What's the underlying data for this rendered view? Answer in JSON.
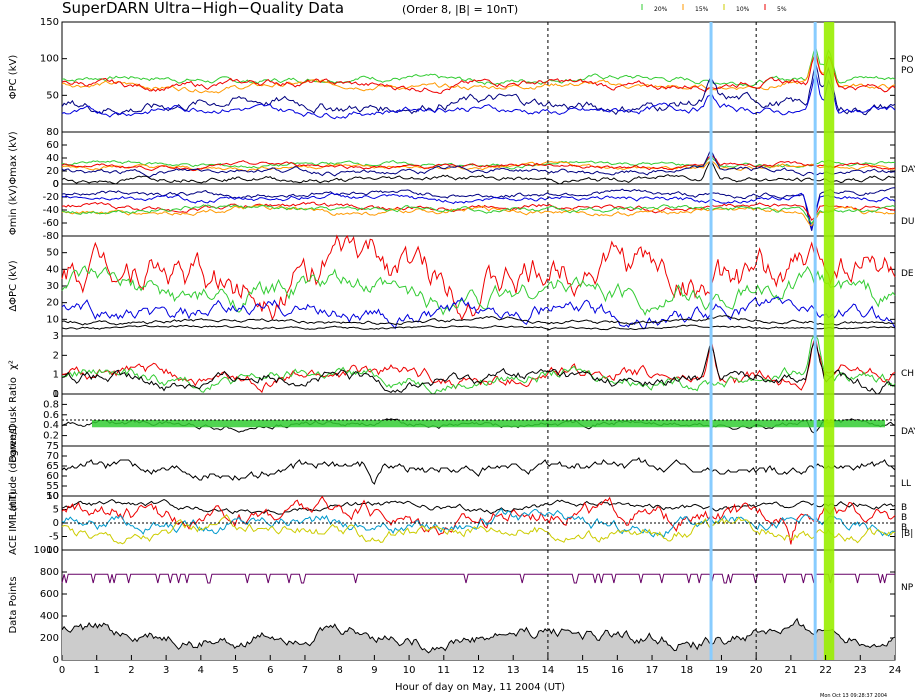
{
  "header": {
    "title": "SuperDARN Ultra−High−Quality Data",
    "subtitle": "(Order 8, |B| = 10nT)",
    "legend": [
      {
        "label": "20%",
        "color": "#33cc33"
      },
      {
        "label": "15%",
        "color": "#ff9900"
      },
      {
        "label": "10%",
        "color": "#cccc00"
      },
      {
        "label": "5%",
        "color": "#ee0000"
      }
    ],
    "stamp": "Mon Oct 13 09:28:37 2004"
  },
  "colors": {
    "red": "#ee0000",
    "green": "#33cc33",
    "orange": "#ff9900",
    "yellow": "#cccc00",
    "navy": "#000080",
    "blue": "#0000dd",
    "black": "#000000",
    "purple": "#660066",
    "skyblue": "#88ccff",
    "lime": "#99ee00",
    "grey": "#cccccc",
    "cyan": "#0099cc"
  },
  "chart_data": {
    "type": "line",
    "xlabel": "Hour of day on May, 11 2004 (UT)",
    "xlim": [
      0,
      24
    ],
    "x_ticks": [
      "0",
      "1",
      "2",
      "3",
      "4",
      "5",
      "6",
      "7",
      "8",
      "9",
      "10",
      "11",
      "12",
      "13",
      "14",
      "15",
      "16",
      "17",
      "18",
      "19",
      "20",
      "21",
      "22",
      "23",
      "24"
    ],
    "dashed_hours": [
      14,
      20
    ],
    "markers": [
      {
        "hour": 18.7,
        "color": "skyblue",
        "kind": "line"
      },
      {
        "hour": 21.7,
        "color": "skyblue",
        "kind": "line"
      },
      {
        "hour": 22.1,
        "color": "lime",
        "kind": "band",
        "width_hours": 0.3
      }
    ],
    "panels": [
      {
        "id": "phipc",
        "ylabel": "ΦPC (kV)",
        "ylim": [
          0,
          150
        ],
        "yticks": [
          "150",
          "100",
          "50"
        ],
        "right_labels": [
          "PO",
          "PO"
        ],
        "series": [
          {
            "color": "green",
            "base": 72,
            "amp": 5,
            "spike": [
              [
                21.7,
                50
              ],
              [
                22.1,
                45
              ]
            ]
          },
          {
            "color": "orange",
            "base": 63,
            "amp": 5,
            "spike": [
              [
                21.7,
                45
              ],
              [
                22.1,
                40
              ]
            ]
          },
          {
            "color": "red",
            "base": 65,
            "amp": 6,
            "spike": [
              [
                21.7,
                48
              ],
              [
                22.1,
                42
              ]
            ]
          },
          {
            "color": "navy",
            "base": 38,
            "amp": 9,
            "spike": [
              [
                21.7,
                60
              ],
              [
                22.1,
                55
              ],
              [
                18.7,
                25
              ]
            ]
          },
          {
            "color": "blue",
            "base": 30,
            "amp": 6,
            "spike": [
              [
                21.7,
                55
              ],
              [
                22.1,
                50
              ],
              [
                18.7,
                20
              ]
            ]
          }
        ]
      },
      {
        "id": "phimax",
        "ylabel": "Φmax (kV)",
        "ylim": [
          0,
          80
        ],
        "yticks": [
          "80",
          "60",
          "40",
          "20",
          "0"
        ],
        "right_labels": [
          "DAY"
        ],
        "series": [
          {
            "color": "green",
            "base": 30,
            "amp": 4,
            "spike": [
              [
                18.7,
                15
              ]
            ]
          },
          {
            "color": "orange",
            "base": 26,
            "amp": 4,
            "spike": [
              [
                18.7,
                15
              ]
            ]
          },
          {
            "color": "red",
            "base": 28,
            "amp": 4,
            "spike": [
              [
                18.7,
                15
              ]
            ]
          },
          {
            "color": "navy",
            "base": 20,
            "amp": 5,
            "spike": [
              [
                18.7,
                25
              ]
            ]
          },
          {
            "color": "black",
            "base": 8,
            "amp": 5,
            "spike": [
              [
                18.7,
                30
              ]
            ]
          }
        ]
      },
      {
        "id": "phimin",
        "ylabel": "Φmin (kV)",
        "ylim": [
          -80,
          0
        ],
        "yticks": [
          "0",
          "-20",
          "-40",
          "-60",
          "-80"
        ],
        "right_labels": [
          "DU"
        ],
        "series": [
          {
            "color": "navy",
            "base": -15,
            "amp": 5,
            "spike": [
              [
                21.6,
                -60
              ]
            ]
          },
          {
            "color": "blue",
            "base": -22,
            "amp": 5,
            "spike": [
              [
                21.6,
                -50
              ]
            ]
          },
          {
            "color": "red",
            "base": -35,
            "amp": 5,
            "spike": [
              [
                21.6,
                -20
              ]
            ]
          },
          {
            "color": "orange",
            "base": -42,
            "amp": 5,
            "spike": [
              [
                21.6,
                -20
              ]
            ]
          },
          {
            "color": "green",
            "base": -38,
            "amp": 5,
            "spike": [
              [
                21.6,
                -20
              ]
            ]
          }
        ]
      },
      {
        "id": "dphipc",
        "ylabel": "ΔΦPC (kV)",
        "ylim": [
          0,
          60
        ],
        "yticks": [
          "50",
          "40",
          "30",
          "20",
          "10"
        ],
        "right_labels": [
          "DE"
        ],
        "series": [
          {
            "color": "red",
            "base": 38,
            "amp": 14,
            "spike": []
          },
          {
            "color": "green",
            "base": 26,
            "amp": 8,
            "spike": []
          },
          {
            "color": "blue",
            "base": 14,
            "amp": 6,
            "spike": []
          },
          {
            "color": "black",
            "base": 9,
            "amp": 1.5,
            "spike": []
          },
          {
            "color": "black",
            "base": 5,
            "amp": 1,
            "spike": []
          }
        ]
      },
      {
        "id": "chi2",
        "ylabel": "χ²",
        "ylim": [
          0,
          3
        ],
        "yticks": [
          "3",
          "2",
          "1",
          "0"
        ],
        "right_labels": [
          "CH"
        ],
        "series": [
          {
            "color": "red",
            "base": 0.9,
            "amp": 0.45,
            "spike": [
              [
                21.7,
                2
              ],
              [
                18.7,
                2
              ]
            ]
          },
          {
            "color": "green",
            "base": 0.85,
            "amp": 0.4,
            "spike": [
              [
                21.7,
                2
              ]
            ]
          },
          {
            "color": "black",
            "base": 0.8,
            "amp": 0.4,
            "spike": [
              [
                21.7,
                2
              ],
              [
                18.7,
                2.2
              ]
            ]
          }
        ]
      },
      {
        "id": "ratio",
        "ylabel": "Dawn/Dusk Ratio",
        "ylim": [
          0,
          1
        ],
        "yticks": [
          "1",
          "0.8",
          "0.6",
          "0.4",
          "0.2"
        ],
        "right_labels": [
          "DAY"
        ],
        "series": [
          {
            "color": "black",
            "base": 0.42,
            "amp": 0.07,
            "spike": [
              [
                21.7,
                -0.25
              ]
            ]
          }
        ]
      },
      {
        "id": "lat",
        "ylabel": "Latitude (degrees)",
        "ylim": [
          50,
          75
        ],
        "yticks": [
          "75",
          "70",
          "65",
          "60",
          "55",
          "50"
        ],
        "right_labels": [
          "LL"
        ],
        "series": [
          {
            "color": "black",
            "base": 64,
            "amp": 3,
            "spike": [
              [
                9,
                -8
              ]
            ]
          }
        ]
      },
      {
        "id": "imf",
        "ylabel": "ACE IMF (nT)",
        "ylim": [
          -10,
          10
        ],
        "yticks": [
          "10",
          "5",
          "0",
          "-5",
          "-10"
        ],
        "right_labels": [
          "|B|"
        ],
        "right_legend": [
          {
            "label": "B",
            "color": "red"
          },
          {
            "label": "B",
            "color": "yellow"
          },
          {
            "label": "B",
            "color": "cyan"
          }
        ],
        "series": [
          {
            "color": "black",
            "base": 6,
            "amp": 1.5,
            "spike": []
          },
          {
            "color": "red",
            "base": 3,
            "amp": 4,
            "spike": [
              [
                21,
                -10
              ]
            ]
          },
          {
            "color": "cyan",
            "base": 0,
            "amp": 3,
            "spike": []
          },
          {
            "color": "yellow",
            "base": -3,
            "amp": 3,
            "spike": []
          }
        ]
      },
      {
        "id": "points",
        "ylabel": "Data Points",
        "ylim": [
          0,
          1000
        ],
        "yticks": [
          "1000",
          "800",
          "600",
          "400",
          "200",
          "0"
        ],
        "right_labels": [
          "NP"
        ],
        "series": [
          {
            "color": "purple",
            "base": 780,
            "amp": 0,
            "spike": []
          },
          {
            "color": "black",
            "base": 220,
            "amp": 80,
            "spike": [],
            "fill": "grey"
          }
        ]
      }
    ]
  }
}
